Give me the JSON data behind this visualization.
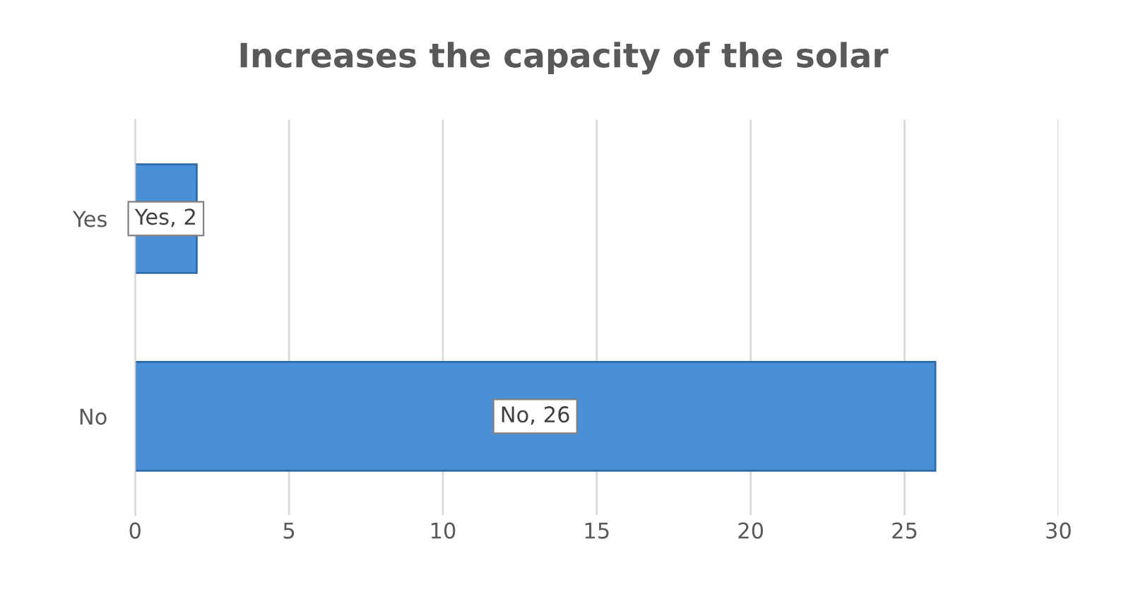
{
  "chart_data": {
    "type": "bar",
    "orientation": "horizontal",
    "title": "Increases the capacity of the solar",
    "categories": [
      "Yes",
      "No"
    ],
    "values": [
      2,
      26
    ],
    "color": "#4a90d9",
    "value_labels": [
      "Yes, 2",
      "No, 26"
    ],
    "xlim": [
      0,
      30
    ],
    "xticks": [
      0,
      5,
      10,
      15,
      20,
      25,
      30
    ],
    "grid": "x",
    "legend": false
  }
}
